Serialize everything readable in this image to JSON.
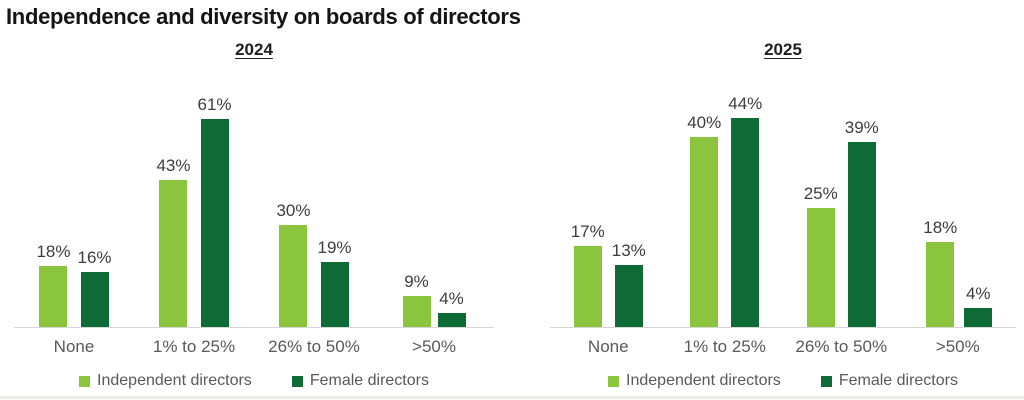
{
  "title": "Independence and diversity on boards of directors",
  "colors": {
    "independent_green": "#8BC53E",
    "female_green": "#0E6B35",
    "value_label_text": "#3d3d3d",
    "axis_text": "#595959",
    "axis_line": "#d6d6d6",
    "title_text": "#141414"
  },
  "legend": [
    {
      "label": "Independent directors",
      "color": "#8BC53E",
      "swatch_icon": "square-swatch-icon"
    },
    {
      "label": "Female directors",
      "color": "#0E6B35",
      "swatch_icon": "square-swatch-icon"
    }
  ],
  "chart_data": [
    {
      "type": "bar",
      "title": "2024",
      "categories": [
        "None",
        "1% to 25%",
        "26% to 50%",
        ">50%"
      ],
      "series": [
        {
          "name": "Independent directors",
          "color": "#8BC53E",
          "values": [
            18,
            43,
            30,
            9
          ]
        },
        {
          "name": "Female directors",
          "color": "#0E6B35",
          "values": [
            16,
            61,
            19,
            4
          ]
        }
      ],
      "value_suffix": "%",
      "ylim": [
        0,
        75
      ],
      "grid": false,
      "legend_position": "bottom"
    },
    {
      "type": "bar",
      "title": "2025",
      "categories": [
        "None",
        "1% to 25%",
        "26% to 50%",
        ">50%"
      ],
      "series": [
        {
          "name": "Independent directors",
          "color": "#8BC53E",
          "values": [
            17,
            40,
            25,
            18
          ]
        },
        {
          "name": "Female directors",
          "color": "#0E6B35",
          "values": [
            13,
            44,
            39,
            4
          ]
        }
      ],
      "value_suffix": "%",
      "ylim": [
        0,
        54
      ],
      "grid": false,
      "legend_position": "bottom"
    }
  ]
}
